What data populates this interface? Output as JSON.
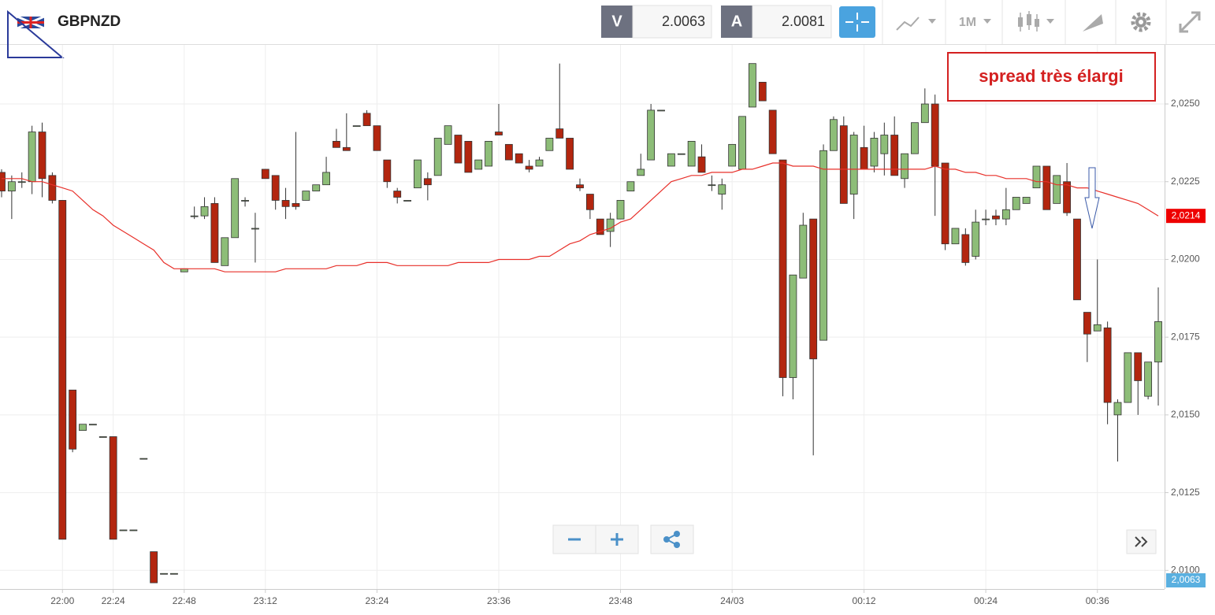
{
  "header": {
    "symbol": "GBPNZD",
    "bid_label": "V",
    "bid": "2.0063",
    "ask_label": "A",
    "ask": "2.0081",
    "period": "1M"
  },
  "chart_data": {
    "type": "candlestick",
    "annotation": "spread très élargi",
    "categories": [
      null,
      null,
      null,
      null,
      null,
      null,
      "22:00",
      null,
      null,
      null,
      null,
      "22:24",
      null,
      null,
      null,
      null,
      null,
      null,
      "22:48",
      null,
      null,
      null,
      null,
      null,
      null,
      null,
      "23:12",
      null,
      null,
      null,
      null,
      null,
      null,
      null,
      null,
      null,
      null,
      "23:24",
      null,
      null,
      null,
      null,
      null,
      null,
      null,
      null,
      null,
      null,
      null,
      "23:36",
      null,
      null,
      null,
      null,
      null,
      null,
      null,
      null,
      null,
      null,
      null,
      "23:48",
      null,
      null,
      null,
      null,
      null,
      null,
      null,
      null,
      null,
      null,
      "24/03",
      null,
      null,
      null,
      null,
      null,
      null,
      null,
      null,
      null,
      null,
      null,
      null,
      "00:12",
      null,
      null,
      null,
      null,
      null,
      null,
      null,
      null,
      null,
      null,
      null,
      "00:24",
      null,
      null,
      null,
      null,
      null,
      null,
      null,
      null,
      null,
      null,
      "00:36",
      null,
      null,
      null,
      null,
      null,
      null
    ],
    "open": [
      2.0228,
      2.0222,
      2.0225,
      2.0225,
      2.0241,
      2.0227,
      2.0219,
      2.0158,
      2.0145,
      2.0147,
      2.0143,
      2.0143,
      2.0113,
      2.0113,
      2.0136,
      2.0106,
      2.0099,
      2.0099,
      2.0196,
      2.0214,
      2.0214,
      2.0218,
      2.0198,
      2.0207,
      2.0219,
      2.021,
      2.0229,
      2.0227,
      2.0219,
      2.0218,
      2.0219,
      2.0222,
      2.0224,
      2.0238,
      2.0236,
      2.0243,
      2.0247,
      2.0243,
      2.0232,
      2.0222,
      2.0219,
      2.0223,
      2.0226,
      2.0227,
      2.0237,
      2.024,
      2.0238,
      2.0229,
      2.023,
      2.0241,
      2.0237,
      2.0234,
      2.023,
      2.023,
      2.0235,
      2.0242,
      2.0239,
      2.0224,
      2.0221,
      2.0213,
      2.0209,
      2.0213,
      2.0222,
      2.0227,
      2.0232,
      2.0248,
      2.023,
      2.0234,
      2.023,
      2.0233,
      2.0224,
      2.0221,
      2.023,
      2.0229,
      2.0249,
      2.0257,
      2.0248,
      2.0232,
      2.0162,
      2.0194,
      2.0213,
      2.0174,
      2.0235,
      2.0243,
      2.0221,
      2.0236,
      2.023,
      2.0234,
      2.024,
      2.0226,
      2.0234,
      2.0244,
      2.025,
      2.0231,
      2.0205,
      2.0208,
      2.0201,
      2.0213,
      2.0214,
      2.0213,
      2.0216,
      2.0218,
      2.0223,
      2.023,
      2.0218,
      2.0225,
      2.0213,
      2.0183,
      2.0177,
      2.0178,
      2.015,
      2.0154,
      2.017,
      2.0156,
      2.0167
    ],
    "high": [
      2.0229,
      2.0227,
      2.0228,
      2.0243,
      2.0244,
      2.0228,
      2.0219,
      2.0158,
      2.0147,
      2.0147,
      2.0143,
      2.0143,
      2.0113,
      2.0113,
      2.0136,
      2.0106,
      2.0099,
      2.0099,
      2.0197,
      2.0217,
      2.022,
      2.022,
      2.0207,
      2.0226,
      2.022,
      2.0215,
      2.0229,
      2.0227,
      2.0223,
      2.0241,
      2.0222,
      2.0224,
      2.0233,
      2.0242,
      2.0247,
      2.0243,
      2.0248,
      2.0243,
      2.0232,
      2.0223,
      2.0219,
      2.0232,
      2.0228,
      2.0239,
      2.0243,
      2.024,
      2.0238,
      2.0232,
      2.0238,
      2.025,
      2.0237,
      2.0234,
      2.0232,
      2.0233,
      2.0239,
      2.0263,
      2.0239,
      2.0226,
      2.0221,
      2.0213,
      2.0215,
      2.0219,
      2.0225,
      2.0234,
      2.025,
      2.0248,
      2.0234,
      2.0234,
      2.0238,
      2.0237,
      2.0227,
      2.0226,
      2.0237,
      2.0246,
      2.0263,
      2.0257,
      2.0248,
      2.0232,
      2.0195,
      2.0215,
      2.0213,
      2.0237,
      2.0246,
      2.0246,
      2.0241,
      2.0243,
      2.0241,
      2.0244,
      2.0246,
      2.0234,
      2.0244,
      2.0255,
      2.0253,
      2.0231,
      2.021,
      2.021,
      2.0216,
      2.0216,
      2.0216,
      2.0223,
      2.022,
      2.022,
      2.023,
      2.023,
      2.0227,
      2.0231,
      2.0213,
      2.0183,
      2.02,
      2.018,
      2.0155,
      2.017,
      2.017,
      2.0167,
      2.0191
    ],
    "low": [
      2.022,
      2.0213,
      2.0223,
      2.0221,
      2.022,
      2.0218,
      2.011,
      2.0138,
      2.0145,
      2.0147,
      2.0143,
      2.011,
      2.0113,
      2.0113,
      2.0136,
      2.0096,
      2.0099,
      2.0099,
      2.0196,
      2.0213,
      2.0213,
      2.0199,
      2.0198,
      2.0207,
      2.0217,
      2.0199,
      2.0226,
      2.0216,
      2.0213,
      2.0216,
      2.0219,
      2.0222,
      2.0224,
      2.0236,
      2.0235,
      2.0243,
      2.0243,
      2.0235,
      2.0223,
      2.0218,
      2.0219,
      2.0223,
      2.0219,
      2.0227,
      2.0237,
      2.0231,
      2.0228,
      2.0229,
      2.023,
      2.024,
      2.0232,
      2.0231,
      2.0228,
      2.023,
      2.0235,
      2.0239,
      2.0229,
      2.0222,
      2.0213,
      2.0208,
      2.0204,
      2.0213,
      2.0222,
      2.0227,
      2.0232,
      2.0248,
      2.023,
      2.0234,
      2.023,
      2.0228,
      2.0222,
      2.0216,
      2.023,
      2.0229,
      2.0249,
      2.0251,
      2.0234,
      2.0156,
      2.0155,
      2.0194,
      2.0137,
      2.0174,
      2.0235,
      2.0218,
      2.0213,
      2.0229,
      2.0228,
      2.0227,
      2.0227,
      2.0223,
      2.0234,
      2.0244,
      2.0214,
      2.0203,
      2.0205,
      2.0198,
      2.02,
      2.0211,
      2.0211,
      2.0211,
      2.0216,
      2.0218,
      2.0223,
      2.0216,
      2.0218,
      2.0214,
      2.0187,
      2.0167,
      2.0177,
      2.0147,
      2.0135,
      2.0154,
      2.015,
      2.0155,
      2.0153
    ],
    "close": [
      2.0222,
      2.0225,
      2.0225,
      2.0241,
      2.0226,
      2.0219,
      2.011,
      2.0139,
      2.0147,
      2.0147,
      2.0143,
      2.011,
      2.0113,
      2.0113,
      2.0136,
      2.0096,
      2.0099,
      2.0099,
      2.0197,
      2.0214,
      2.0217,
      2.0199,
      2.0207,
      2.0226,
      2.0219,
      2.021,
      2.0226,
      2.0219,
      2.0217,
      2.0217,
      2.0222,
      2.0224,
      2.0228,
      2.0236,
      2.0235,
      2.0243,
      2.0243,
      2.0235,
      2.0225,
      2.022,
      2.0219,
      2.0232,
      2.0224,
      2.0239,
      2.0243,
      2.0231,
      2.0228,
      2.0232,
      2.0238,
      2.024,
      2.0232,
      2.0231,
      2.0229,
      2.0232,
      2.0239,
      2.0239,
      2.0229,
      2.0223,
      2.0216,
      2.0208,
      2.0213,
      2.0219,
      2.0225,
      2.0229,
      2.0248,
      2.0248,
      2.0234,
      2.0234,
      2.0238,
      2.0228,
      2.0224,
      2.0224,
      2.0237,
      2.0246,
      2.0263,
      2.0251,
      2.0234,
      2.0162,
      2.0195,
      2.0211,
      2.0168,
      2.0235,
      2.0245,
      2.0218,
      2.024,
      2.0229,
      2.0239,
      2.024,
      2.0227,
      2.0234,
      2.0244,
      2.025,
      2.023,
      2.0205,
      2.021,
      2.0199,
      2.0212,
      2.0213,
      2.0213,
      2.0216,
      2.022,
      2.022,
      2.023,
      2.0216,
      2.0227,
      2.0215,
      2.0187,
      2.0176,
      2.0179,
      2.0154,
      2.0154,
      2.017,
      2.0161,
      2.0167,
      2.018
    ],
    "up_color": "#8dbd78",
    "down_color": "#b3260f",
    "ma_line": {
      "color": "#e8302a",
      "values": [
        2.0226,
        2.0226,
        2.0226,
        2.0225,
        2.0225,
        2.0224,
        2.0223,
        2.0222,
        2.0219,
        2.0216,
        2.0214,
        2.0211,
        2.0209,
        2.0207,
        2.0205,
        2.0203,
        2.0199,
        2.0197,
        2.0197,
        2.0197,
        2.0197,
        2.0197,
        2.0196,
        2.0196,
        2.0196,
        2.0196,
        2.0196,
        2.0196,
        2.0197,
        2.0197,
        2.0197,
        2.0197,
        2.0197,
        2.0198,
        2.0198,
        2.0198,
        2.0199,
        2.0199,
        2.0199,
        2.0198,
        2.0198,
        2.0198,
        2.0198,
        2.0198,
        2.0198,
        2.0199,
        2.0199,
        2.0199,
        2.0199,
        2.02,
        2.02,
        2.02,
        2.02,
        2.0201,
        2.0201,
        2.0203,
        2.0205,
        2.0206,
        2.0208,
        2.0209,
        2.021,
        2.0212,
        2.0213,
        2.0216,
        2.0219,
        2.0222,
        2.0225,
        2.0226,
        2.0227,
        2.0227,
        2.0228,
        2.0228,
        2.0228,
        2.0229,
        2.0229,
        2.023,
        2.0231,
        2.0231,
        2.023,
        2.023,
        2.023,
        2.0229,
        2.0229,
        2.0229,
        2.0229,
        2.0229,
        2.0229,
        2.0229,
        2.0229,
        2.0229,
        2.0229,
        2.0229,
        2.023,
        2.0229,
        2.0229,
        2.0228,
        2.0228,
        2.0227,
        2.0227,
        2.0226,
        2.0226,
        2.0226,
        2.0225,
        2.0225,
        2.0224,
        2.0224,
        2.0223,
        2.0223,
        2.0222,
        2.0221,
        2.022,
        2.0219,
        2.0218,
        2.0216,
        2.0214
      ]
    },
    "ma_label": "2,0214",
    "last_price_label": "2,0063",
    "ylim": [
      2.0094,
      2.0269
    ],
    "yticks": [
      {
        "value": 2.01,
        "label": "2,0100"
      },
      {
        "value": 2.0125,
        "label": "2,0125"
      },
      {
        "value": 2.015,
        "label": "2,0150"
      },
      {
        "value": 2.0175,
        "label": "2,0175"
      },
      {
        "value": 2.02,
        "label": "2,0200"
      },
      {
        "value": 2.0225,
        "label": "2,0225"
      },
      {
        "value": 2.025,
        "label": "2,0250"
      }
    ],
    "grid": true
  }
}
